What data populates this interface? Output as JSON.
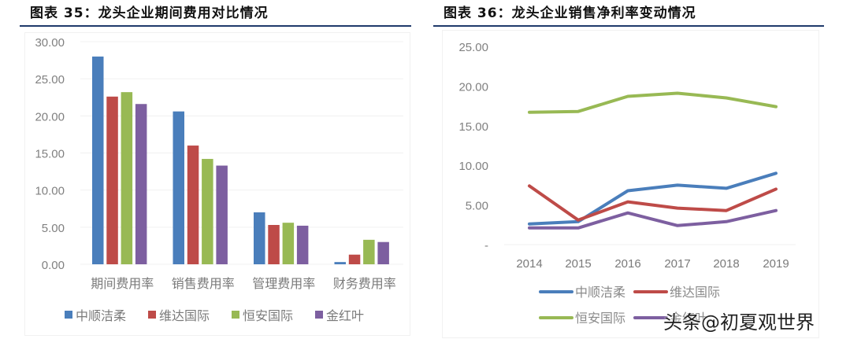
{
  "chart_data": [
    {
      "type": "bar",
      "title": "图表 35：龙头企业期间费用对比情况",
      "xlabel": "",
      "ylabel": "",
      "ylim": [
        0,
        30
      ],
      "yticks": [
        "0.00",
        "5.00",
        "10.00",
        "15.00",
        "20.00",
        "25.00",
        "30.00"
      ],
      "grid": true,
      "legend_position": "bottom",
      "categories": [
        "期间费用率",
        "销售费用率",
        "管理费用率",
        "财务费用率"
      ],
      "series": [
        {
          "name": "中顺洁柔",
          "color": "#4a7ebb",
          "values": [
            28.0,
            20.6,
            7.0,
            0.3
          ]
        },
        {
          "name": "维达国际",
          "color": "#be4b48",
          "values": [
            22.6,
            16.0,
            5.3,
            1.3
          ]
        },
        {
          "name": "恒安国际",
          "color": "#98b954",
          "values": [
            23.2,
            14.2,
            5.6,
            3.3
          ]
        },
        {
          "name": "金红叶",
          "color": "#7d5fa0",
          "values": [
            21.6,
            13.3,
            5.2,
            3.0
          ]
        }
      ]
    },
    {
      "type": "line",
      "title": "图表 36：龙头企业销售净利率变动情况",
      "xlabel": "",
      "ylabel": "",
      "ylim": [
        0,
        25
      ],
      "yticks": [
        "-",
        "5.00",
        "10.00",
        "15.00",
        "20.00",
        "25.00"
      ],
      "grid": false,
      "legend_position": "bottom",
      "x": [
        "2014",
        "2015",
        "2016",
        "2017",
        "2018",
        "2019"
      ],
      "series": [
        {
          "name": "中顺洁柔",
          "color": "#4a7ebb",
          "values": [
            2.6,
            2.9,
            6.8,
            7.5,
            7.1,
            9.0
          ]
        },
        {
          "name": "维达国际",
          "color": "#be4b48",
          "values": [
            7.4,
            3.1,
            5.4,
            4.6,
            4.3,
            7.0
          ]
        },
        {
          "name": "恒安国际",
          "color": "#98b954",
          "values": [
            16.7,
            16.8,
            18.7,
            19.1,
            18.5,
            17.4
          ]
        },
        {
          "name": "金红叶",
          "color": "#7d5fa0",
          "values": [
            2.1,
            2.1,
            4.0,
            2.4,
            2.9,
            4.3
          ]
        }
      ]
    }
  ],
  "left": {
    "title": "图表 35：龙头企业期间费用对比情况"
  },
  "right": {
    "title": "图表 36：龙头企业销售净利率变动情况"
  },
  "watermark": "头条@初夏观世界"
}
